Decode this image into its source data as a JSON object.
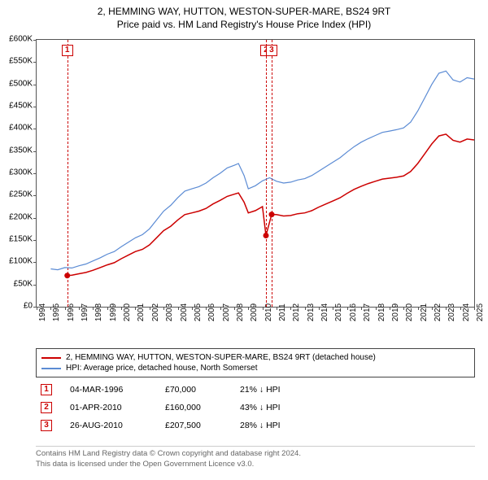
{
  "title_line1": "2, HEMMING WAY, HUTTON, WESTON-SUPER-MARE, BS24 9RT",
  "title_line2": "Price paid vs. HM Land Registry's House Price Index (HPI)",
  "chart": {
    "type": "line",
    "background_color": "#ffffff",
    "border_color": "#555555",
    "x_axis": {
      "min_year": 1994,
      "max_year": 2025,
      "ticks": [
        1994,
        1995,
        1996,
        1997,
        1998,
        1999,
        2000,
        2001,
        2002,
        2003,
        2004,
        2005,
        2006,
        2007,
        2008,
        2009,
        2010,
        2011,
        2012,
        2013,
        2014,
        2015,
        2016,
        2017,
        2018,
        2019,
        2020,
        2021,
        2022,
        2023,
        2024,
        2025
      ],
      "label_fontsize": 10,
      "rotation": -90
    },
    "y_axis": {
      "min": 0,
      "max": 600000,
      "tick_step": 50000,
      "ticks": [
        0,
        50000,
        100000,
        150000,
        200000,
        250000,
        300000,
        350000,
        400000,
        450000,
        500000,
        550000,
        600000
      ],
      "tick_labels": [
        "£0",
        "£50K",
        "£100K",
        "£150K",
        "£200K",
        "£250K",
        "£300K",
        "£350K",
        "£400K",
        "£450K",
        "£500K",
        "£550K",
        "£600K"
      ],
      "label_fontsize": 10
    },
    "series": [
      {
        "name": "hpi",
        "label": "HPI: Average price, detached house, North Somerset",
        "color": "#5b8bd4",
        "line_width": 1.2,
        "data": [
          [
            1995.0,
            85000
          ],
          [
            1995.5,
            83000
          ],
          [
            1996.0,
            88000
          ],
          [
            1996.5,
            87000
          ],
          [
            1997.0,
            92000
          ],
          [
            1997.5,
            96000
          ],
          [
            1998.0,
            103000
          ],
          [
            1998.5,
            110000
          ],
          [
            1999.0,
            118000
          ],
          [
            1999.5,
            124000
          ],
          [
            2000.0,
            135000
          ],
          [
            2000.5,
            145000
          ],
          [
            2001.0,
            155000
          ],
          [
            2001.5,
            162000
          ],
          [
            2002.0,
            175000
          ],
          [
            2002.5,
            195000
          ],
          [
            2003.0,
            215000
          ],
          [
            2003.5,
            228000
          ],
          [
            2004.0,
            245000
          ],
          [
            2004.5,
            260000
          ],
          [
            2005.0,
            265000
          ],
          [
            2005.5,
            270000
          ],
          [
            2006.0,
            278000
          ],
          [
            2006.5,
            290000
          ],
          [
            2007.0,
            300000
          ],
          [
            2007.5,
            312000
          ],
          [
            2008.0,
            318000
          ],
          [
            2008.3,
            322000
          ],
          [
            2008.7,
            295000
          ],
          [
            2009.0,
            265000
          ],
          [
            2009.5,
            272000
          ],
          [
            2010.0,
            283000
          ],
          [
            2010.5,
            290000
          ],
          [
            2011.0,
            282000
          ],
          [
            2011.5,
            278000
          ],
          [
            2012.0,
            280000
          ],
          [
            2012.5,
            285000
          ],
          [
            2013.0,
            288000
          ],
          [
            2013.5,
            295000
          ],
          [
            2014.0,
            305000
          ],
          [
            2014.5,
            315000
          ],
          [
            2015.0,
            325000
          ],
          [
            2015.5,
            335000
          ],
          [
            2016.0,
            348000
          ],
          [
            2016.5,
            360000
          ],
          [
            2017.0,
            370000
          ],
          [
            2017.5,
            378000
          ],
          [
            2018.0,
            385000
          ],
          [
            2018.5,
            392000
          ],
          [
            2019.0,
            395000
          ],
          [
            2019.5,
            398000
          ],
          [
            2020.0,
            402000
          ],
          [
            2020.5,
            415000
          ],
          [
            2021.0,
            440000
          ],
          [
            2021.5,
            470000
          ],
          [
            2022.0,
            500000
          ],
          [
            2022.5,
            525000
          ],
          [
            2023.0,
            530000
          ],
          [
            2023.5,
            510000
          ],
          [
            2024.0,
            505000
          ],
          [
            2024.5,
            515000
          ],
          [
            2025.0,
            512000
          ]
        ]
      },
      {
        "name": "property",
        "label": "2, HEMMING WAY, HUTTON, WESTON-SUPER-MARE, BS24 9RT (detached house)",
        "color": "#cc0000",
        "line_width": 1.5,
        "data": [
          [
            1996.17,
            70000
          ],
          [
            1996.5,
            71000
          ],
          [
            1997.0,
            74000
          ],
          [
            1997.5,
            77000
          ],
          [
            1998.0,
            82000
          ],
          [
            1998.5,
            88000
          ],
          [
            1999.0,
            94000
          ],
          [
            1999.5,
            99000
          ],
          [
            2000.0,
            108000
          ],
          [
            2000.5,
            116000
          ],
          [
            2001.0,
            124000
          ],
          [
            2001.5,
            129000
          ],
          [
            2002.0,
            139000
          ],
          [
            2002.5,
            155000
          ],
          [
            2003.0,
            171000
          ],
          [
            2003.5,
            181000
          ],
          [
            2004.0,
            195000
          ],
          [
            2004.5,
            207000
          ],
          [
            2005.0,
            211000
          ],
          [
            2005.5,
            215000
          ],
          [
            2006.0,
            221000
          ],
          [
            2006.5,
            231000
          ],
          [
            2007.0,
            239000
          ],
          [
            2007.5,
            248000
          ],
          [
            2008.0,
            253000
          ],
          [
            2008.3,
            256000
          ],
          [
            2008.7,
            235000
          ],
          [
            2009.0,
            211000
          ],
          [
            2009.5,
            216000
          ],
          [
            2010.0,
            225000
          ],
          [
            2010.25,
            160000
          ],
          [
            2010.65,
            207500
          ],
          [
            2011.0,
            207000
          ],
          [
            2011.5,
            204000
          ],
          [
            2012.0,
            205000
          ],
          [
            2012.5,
            209000
          ],
          [
            2013.0,
            211000
          ],
          [
            2013.5,
            216000
          ],
          [
            2014.0,
            224000
          ],
          [
            2014.5,
            231000
          ],
          [
            2015.0,
            238000
          ],
          [
            2015.5,
            245000
          ],
          [
            2016.0,
            255000
          ],
          [
            2016.5,
            264000
          ],
          [
            2017.0,
            271000
          ],
          [
            2017.5,
            277000
          ],
          [
            2018.0,
            282000
          ],
          [
            2018.5,
            287000
          ],
          [
            2019.0,
            289000
          ],
          [
            2019.5,
            291000
          ],
          [
            2020.0,
            294000
          ],
          [
            2020.5,
            304000
          ],
          [
            2021.0,
            322000
          ],
          [
            2021.5,
            344000
          ],
          [
            2022.0,
            366000
          ],
          [
            2022.5,
            384000
          ],
          [
            2023.0,
            388000
          ],
          [
            2023.5,
            374000
          ],
          [
            2024.0,
            370000
          ],
          [
            2024.5,
            377000
          ],
          [
            2025.0,
            375000
          ]
        ]
      }
    ],
    "sale_markers": [
      {
        "num": "1",
        "year": 1996.17,
        "price": 70000
      },
      {
        "num": "2",
        "year": 2010.25,
        "price": 160000
      },
      {
        "num": "3",
        "year": 2010.65,
        "price": 207500
      }
    ],
    "sale_point_color": "#cc0000",
    "sale_point_radius": 3.5
  },
  "legend": {
    "items": [
      {
        "color": "#cc0000",
        "label": "2, HEMMING WAY, HUTTON, WESTON-SUPER-MARE, BS24 9RT (detached house)"
      },
      {
        "color": "#5b8bd4",
        "label": "HPI: Average price, detached house, North Somerset"
      }
    ]
  },
  "sales_table": {
    "rows": [
      {
        "num": "1",
        "date": "04-MAR-1996",
        "price": "£70,000",
        "diff": "21% ↓ HPI"
      },
      {
        "num": "2",
        "date": "01-APR-2010",
        "price": "£160,000",
        "diff": "43% ↓ HPI"
      },
      {
        "num": "3",
        "date": "26-AUG-2010",
        "price": "£207,500",
        "diff": "28% ↓ HPI"
      }
    ]
  },
  "footer_line1": "Contains HM Land Registry data © Crown copyright and database right 2024.",
  "footer_line2": "This data is licensed under the Open Government Licence v3.0."
}
